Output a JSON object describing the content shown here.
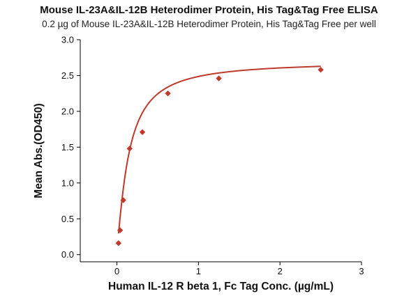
{
  "chart_data": {
    "type": "scatter",
    "title": "Mouse IL-23A&IL-12B Heterodimer Protein, His Tag&Tag Free ELISA",
    "subtitle": "0.2 µg of Mouse IL-23A&IL-12B Heterodimer Protein, His Tag&Tag Free per well",
    "xlabel": "Human IL-12 R beta 1, Fc Tag Conc. (µg/mL)",
    "ylabel": "Mean Abs.(OD450)",
    "xlim": [
      -0.45,
      3
    ],
    "ylim": [
      -0.1,
      3.0
    ],
    "xticks": [
      "0",
      "1",
      "2",
      "3"
    ],
    "yticks": [
      "0.0",
      "0.5",
      "1.0",
      "1.5",
      "2.0",
      "2.5",
      "3.0"
    ],
    "grid": false,
    "legend": "none",
    "series": [
      {
        "x": [
          0.0195,
          0.039,
          0.078,
          0.156,
          0.3125,
          0.625,
          1.25,
          2.5
        ],
        "y": [
          0.16,
          0.34,
          0.76,
          1.48,
          1.71,
          2.25,
          2.46,
          2.58
        ],
        "fit": "four-parameter logistic curve",
        "color": "#c0392b"
      }
    ]
  }
}
